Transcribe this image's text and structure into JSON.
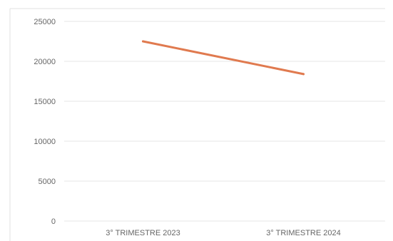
{
  "chart_data": {
    "type": "line",
    "categories": [
      "3° TRIMESTRE 2023",
      "3° TRIMESTRE 2024"
    ],
    "series": [
      {
        "values": [
          22500,
          18400
        ],
        "color": "#e07a4f"
      }
    ],
    "yticks": [
      "0",
      "5000",
      "10000",
      "15000",
      "20000",
      "25000"
    ],
    "ylim": [
      0,
      25000
    ],
    "grid": true,
    "legend": "none"
  }
}
